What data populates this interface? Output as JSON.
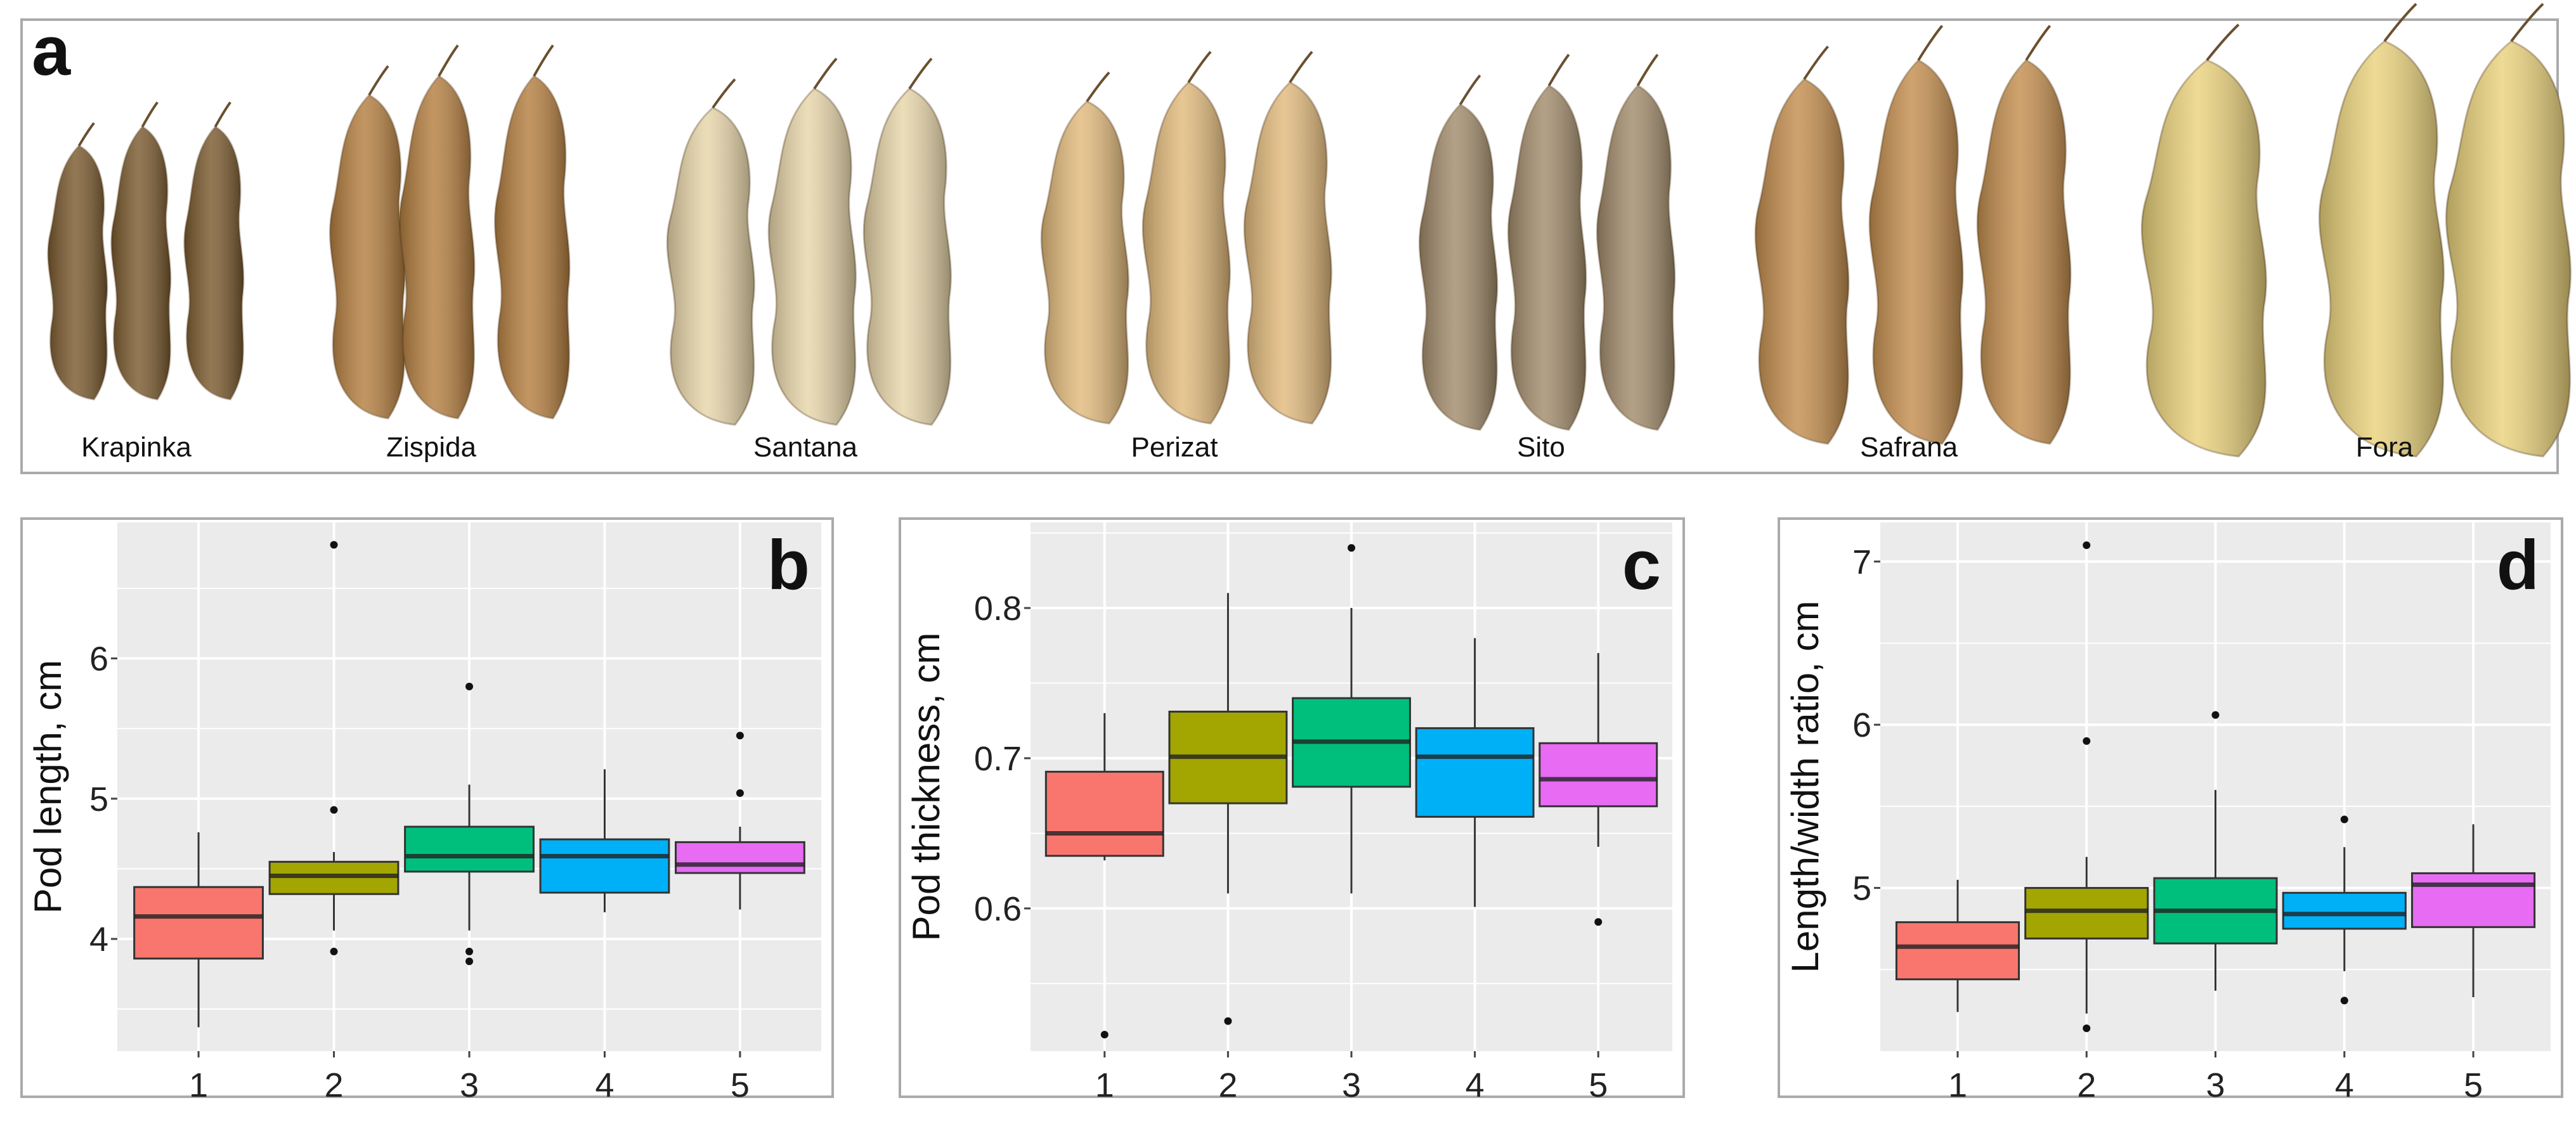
{
  "panel_a": {
    "label": "a",
    "varieties": [
      {
        "name": "Krapinka",
        "color": "#7a5a2e"
      },
      {
        "name": "Zispida",
        "color": "#b57f40"
      },
      {
        "name": "Santana",
        "color": "#e8d6aa"
      },
      {
        "name": "Perizat",
        "color": "#e2ba7c"
      },
      {
        "name": "Sito",
        "color": "#a28c6c"
      },
      {
        "name": "Safrana",
        "color": "#c48e4e"
      },
      {
        "name": "Fora",
        "color": "#ead27c"
      }
    ]
  },
  "chart_data": [
    {
      "type": "box",
      "panel_label": "b",
      "ylabel": "Pod length, cm",
      "categories": [
        "1",
        "2",
        "3",
        "4",
        "5"
      ],
      "colors": [
        "#F8766D",
        "#A3A500",
        "#00BF7D",
        "#00B0F6",
        "#E76BF3"
      ],
      "yticks": [
        "4",
        "5",
        "6"
      ],
      "ylim": [
        3.2,
        6.97
      ],
      "grid": true,
      "boxes": [
        {
          "whisker_low": 3.37,
          "q1": 3.86,
          "median": 4.16,
          "q3": 4.37,
          "whisker_high": 4.76,
          "outliers": []
        },
        {
          "whisker_low": 4.06,
          "q1": 4.32,
          "median": 4.45,
          "q3": 4.55,
          "whisker_high": 4.62,
          "outliers": [
            6.81,
            4.92,
            3.91
          ]
        },
        {
          "whisker_low": 4.06,
          "q1": 4.48,
          "median": 4.59,
          "q3": 4.8,
          "whisker_high": 5.1,
          "outliers": [
            5.8,
            3.91,
            3.84
          ]
        },
        {
          "whisker_low": 4.19,
          "q1": 4.33,
          "median": 4.59,
          "q3": 4.71,
          "whisker_high": 5.21,
          "outliers": []
        },
        {
          "whisker_low": 4.21,
          "q1": 4.47,
          "median": 4.53,
          "q3": 4.69,
          "whisker_high": 4.8,
          "outliers": [
            5.45,
            5.04
          ]
        }
      ]
    },
    {
      "type": "box",
      "panel_label": "c",
      "ylabel": "Pod thickness, cm",
      "categories": [
        "1",
        "2",
        "3",
        "4",
        "5"
      ],
      "colors": [
        "#F8766D",
        "#A3A500",
        "#00BF7D",
        "#00B0F6",
        "#E76BF3"
      ],
      "yticks": [
        "0.6",
        "0.7",
        "0.8"
      ],
      "ylim": [
        0.505,
        0.857
      ],
      "grid": true,
      "boxes": [
        {
          "whisker_low": 0.632,
          "q1": 0.635,
          "median": 0.65,
          "q3": 0.691,
          "whisker_high": 0.73,
          "outliers": [
            0.516
          ]
        },
        {
          "whisker_low": 0.61,
          "q1": 0.67,
          "median": 0.701,
          "q3": 0.731,
          "whisker_high": 0.81,
          "outliers": [
            0.525
          ]
        },
        {
          "whisker_low": 0.61,
          "q1": 0.681,
          "median": 0.711,
          "q3": 0.74,
          "whisker_high": 0.8,
          "outliers": [
            0.84
          ]
        },
        {
          "whisker_low": 0.601,
          "q1": 0.661,
          "median": 0.701,
          "q3": 0.72,
          "whisker_high": 0.78,
          "outliers": []
        },
        {
          "whisker_low": 0.641,
          "q1": 0.668,
          "median": 0.686,
          "q3": 0.71,
          "whisker_high": 0.77,
          "outliers": [
            0.591
          ]
        }
      ]
    },
    {
      "type": "box",
      "panel_label": "d",
      "ylabel": "Length/width ratio, cm",
      "categories": [
        "1",
        "2",
        "3",
        "4",
        "5"
      ],
      "colors": [
        "#F8766D",
        "#A3A500",
        "#00BF7D",
        "#00B0F6",
        "#E76BF3"
      ],
      "yticks": [
        "5",
        "6",
        "7"
      ],
      "ylim": [
        4.0,
        7.24
      ],
      "grid": true,
      "boxes": [
        {
          "whisker_low": 4.24,
          "q1": 4.44,
          "median": 4.64,
          "q3": 4.79,
          "whisker_high": 5.05,
          "outliers": []
        },
        {
          "whisker_low": 4.23,
          "q1": 4.69,
          "median": 4.86,
          "q3": 5.0,
          "whisker_high": 5.19,
          "outliers": [
            7.1,
            5.9,
            4.14
          ]
        },
        {
          "whisker_low": 4.37,
          "q1": 4.66,
          "median": 4.86,
          "q3": 5.06,
          "whisker_high": 5.6,
          "outliers": [
            6.06
          ]
        },
        {
          "whisker_low": 4.49,
          "q1": 4.75,
          "median": 4.84,
          "q3": 4.97,
          "whisker_high": 5.25,
          "outliers": [
            5.42,
            4.31
          ]
        },
        {
          "whisker_low": 4.33,
          "q1": 4.76,
          "median": 5.02,
          "q3": 5.09,
          "whisker_high": 5.39,
          "outliers": []
        }
      ]
    }
  ]
}
